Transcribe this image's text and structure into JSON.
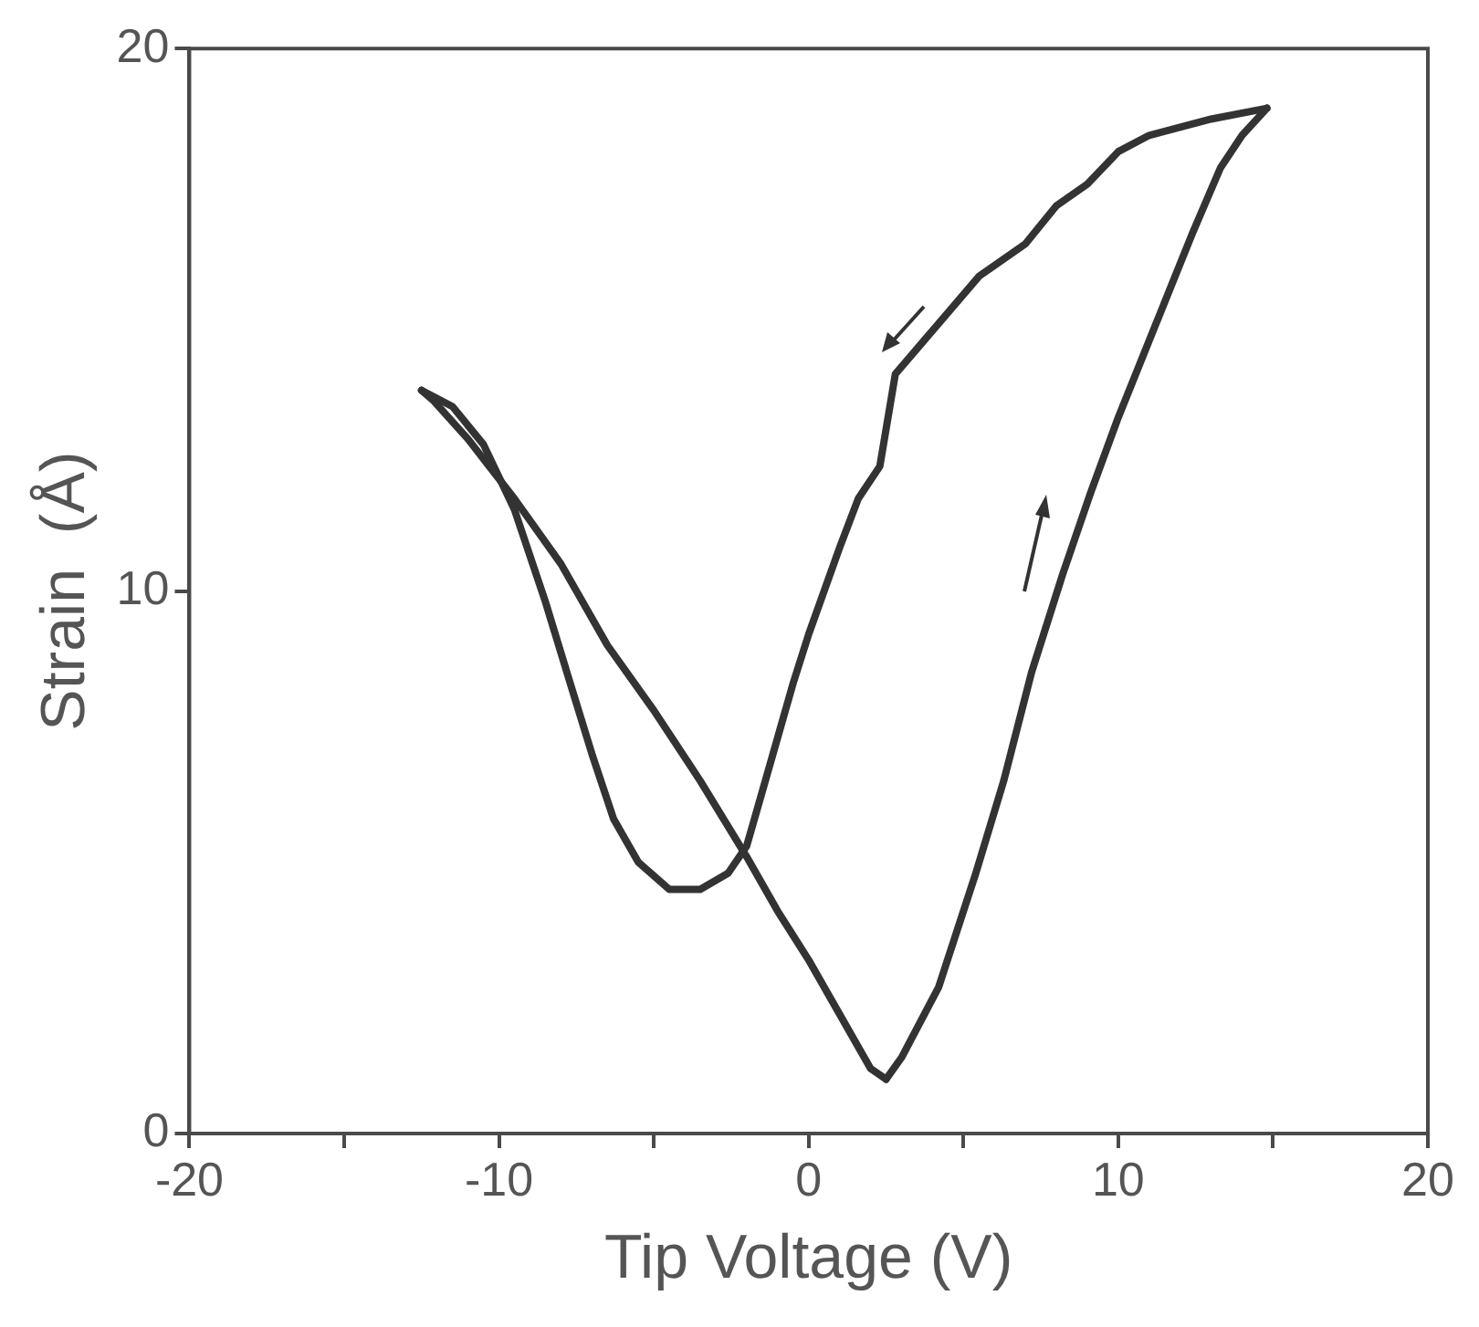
{
  "chart_data": {
    "type": "line",
    "xlabel": "Tip Voltage (V)",
    "ylabel": "Strain  (Å)",
    "xlim": [
      -20,
      20
    ],
    "xticks": [
      -20,
      {
        "value": -15,
        "label": null
      },
      -10,
      {
        "value": -5,
        "label": null
      },
      0,
      {
        "value": 5,
        "label": null
      },
      10,
      {
        "value": 15,
        "label": null
      },
      20
    ],
    "ylim": [
      0,
      20
    ],
    "yticks": [
      0,
      10,
      20
    ],
    "grid": false,
    "marker": "none",
    "line_style": "solid",
    "series": [
      {
        "color": "#333333",
        "x": [
          2.5,
          3,
          4.2,
          5.4,
          6.3,
          7.2,
          8.2,
          9.1,
          10,
          11.2,
          12.4,
          13.3,
          14,
          14.8
        ],
        "values": [
          1.0,
          1.4,
          2.7,
          4.8,
          6.5,
          8.5,
          10.3,
          11.8,
          13.2,
          14.9,
          16.6,
          17.8,
          18.4,
          18.9
        ]
      },
      {
        "color": "#333333",
        "x": [
          14.8,
          13,
          11,
          10,
          9,
          8,
          7,
          5.5,
          4,
          2.8,
          2.3,
          1.6,
          1,
          0.5,
          0,
          -0.5,
          -1,
          -1.5,
          -2,
          -2.6,
          -3.5,
          -4.5,
          -5.5,
          -6.3,
          -7,
          -7.7,
          -8.5,
          -9.5,
          -10.5,
          -11.5,
          -12.5
        ],
        "values": [
          18.9,
          18.7,
          18.4,
          18.1,
          17.5,
          17.1,
          16.4,
          15.8,
          14.8,
          14.0,
          12.3,
          11.7,
          10.8,
          10,
          9.2,
          8.3,
          7.3,
          6.3,
          5.3,
          4.8,
          4.5,
          4.5,
          5,
          5.8,
          7,
          8.3,
          9.8,
          11.5,
          12.7,
          13.4,
          13.7
        ]
      },
      {
        "color": "#333333",
        "x": [
          -12.5,
          -12.1,
          -11,
          -9.5,
          -8,
          -6.5,
          -5,
          -3.5,
          -2,
          -1,
          0,
          1,
          2,
          2.5
        ],
        "values": [
          13.7,
          13.5,
          12.8,
          11.7,
          10.5,
          9,
          7.8,
          6.5,
          5.1,
          4.1,
          3.2,
          2.2,
          1.2,
          1.0
        ]
      }
    ]
  }
}
